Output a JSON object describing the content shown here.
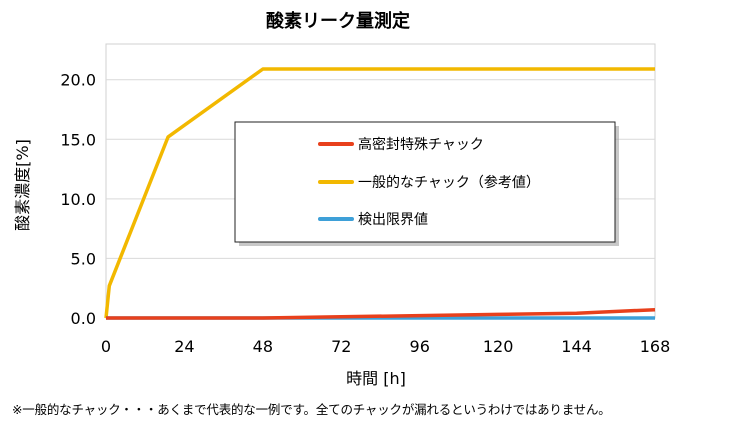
{
  "chart_data": {
    "type": "line",
    "title": "酸素リーク量測定",
    "xlabel": "時間 [h]",
    "ylabel": "酸素濃度[%]",
    "xlim": [
      0,
      168
    ],
    "ylim": [
      0,
      23.0
    ],
    "xticks": [
      0,
      24,
      48,
      72,
      96,
      120,
      144,
      168
    ],
    "xtick_labels": [
      "0",
      "24",
      "48",
      "72",
      "96",
      "120",
      "144",
      "168"
    ],
    "yticks": [
      0,
      5,
      10,
      15,
      20
    ],
    "ytick_labels": [
      "0.0",
      "5.0",
      "10.0",
      "15.0",
      "20.0"
    ],
    "grid": "horizontal",
    "legend_position": "center",
    "series": [
      {
        "name": "高密封特殊チャック",
        "color": "#e8401c",
        "x": [
          0,
          24,
          48,
          72,
          96,
          120,
          144,
          168
        ],
        "y": [
          0.0,
          0.0,
          0.0,
          0.1,
          0.2,
          0.3,
          0.4,
          0.7
        ]
      },
      {
        "name": "一般的なチャック（参考値）",
        "color": "#f2b800",
        "x": [
          0,
          1,
          19,
          48,
          168
        ],
        "y": [
          0.0,
          2.7,
          15.2,
          20.9,
          20.9
        ]
      },
      {
        "name": "検出限界値",
        "color": "#3ea0d8",
        "x": [
          0,
          168
        ],
        "y": [
          0.0,
          0.0
        ]
      }
    ]
  },
  "footnote": "※一般的なチャック・・・あくまで代表的な一例です。全てのチャックが漏れるというわけではありません。"
}
